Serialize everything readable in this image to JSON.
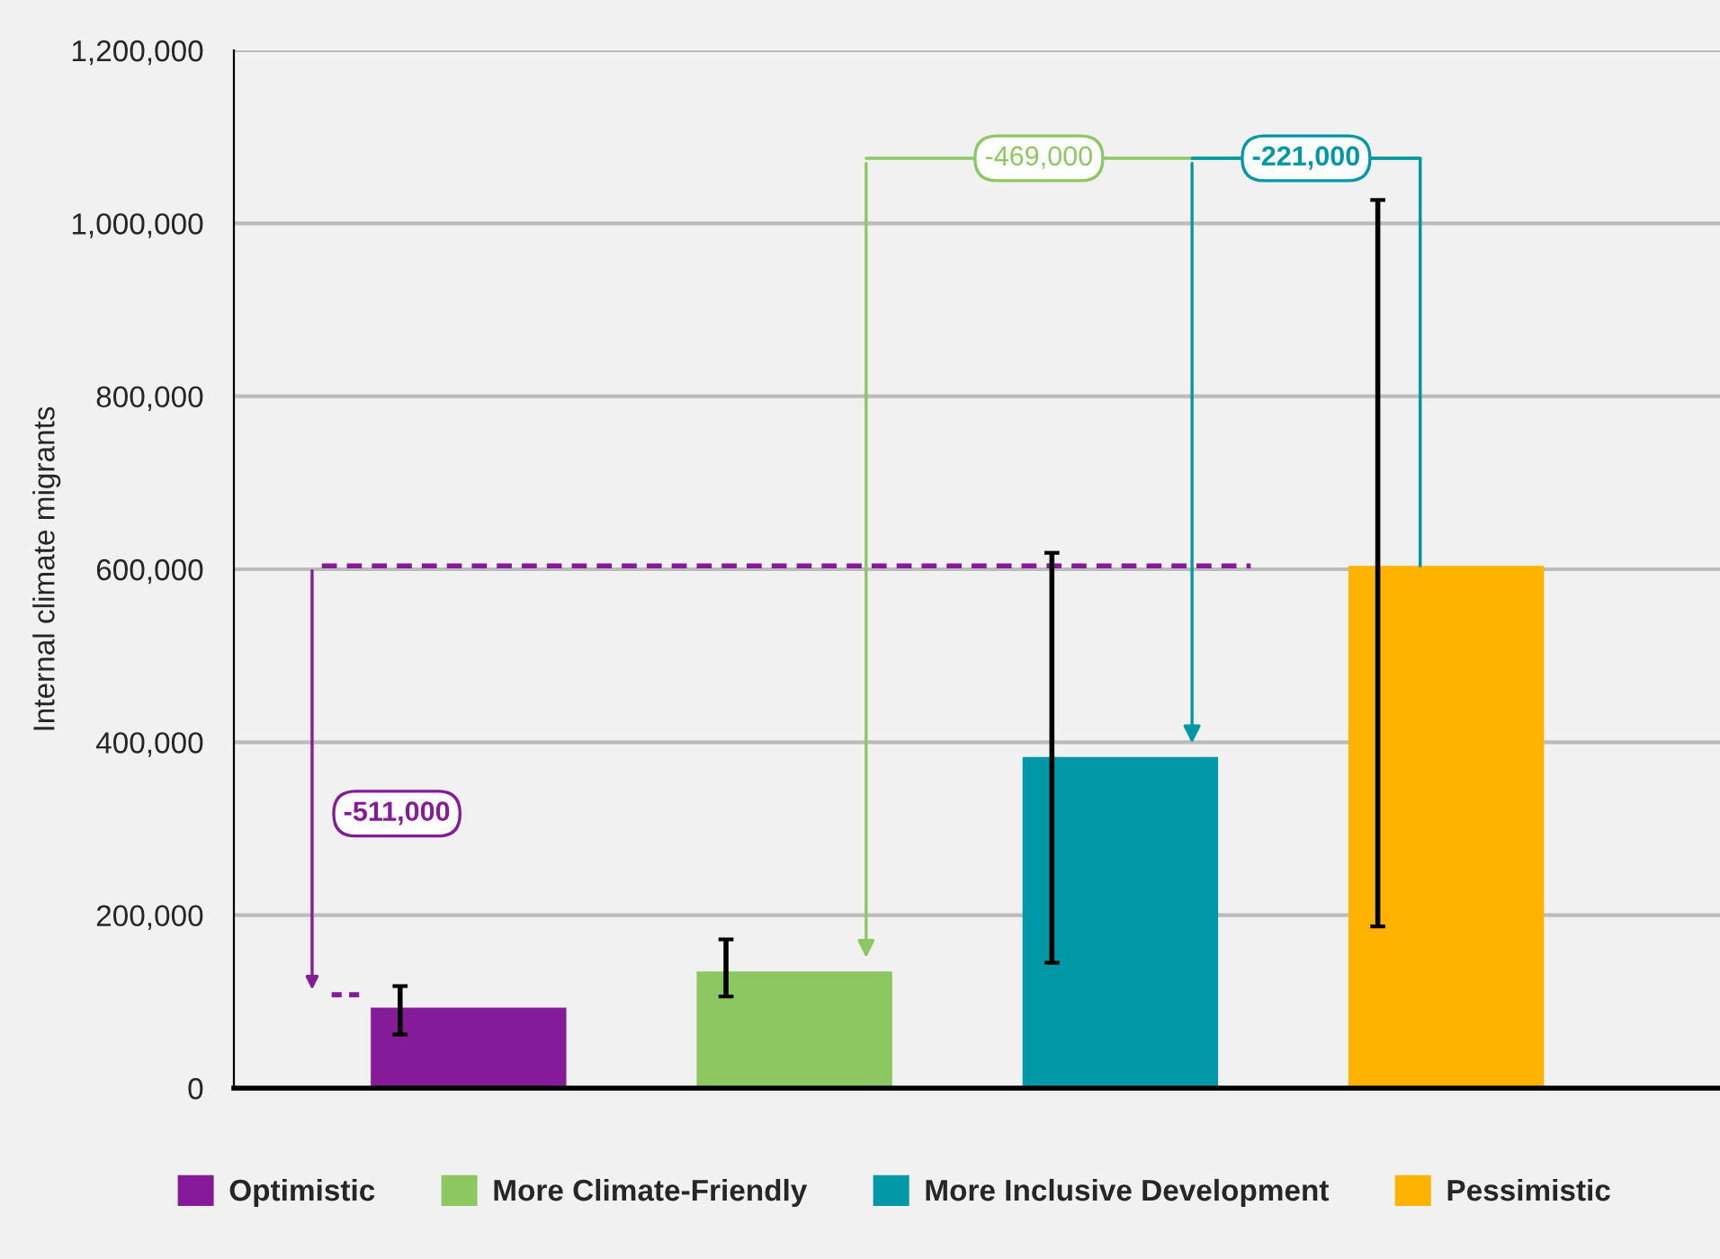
{
  "chart_data": {
    "type": "bar",
    "ylabel": "Internal climate migrants",
    "categories": [
      null,
      null,
      null,
      null
    ],
    "series": [
      {
        "name": "Optimistic",
        "color": "#851b98",
        "values": [
          93000,
          null,
          null,
          null
        ],
        "errors": [
          [
            62000,
            118000
          ],
          null,
          null,
          null
        ]
      },
      {
        "name": "More Climate-Friendly",
        "color": "#8dc762",
        "values": [
          null,
          135000,
          null,
          null
        ],
        "errors": [
          null,
          [
            106000,
            172000
          ],
          null,
          null
        ]
      },
      {
        "name": "More Inclusive Development",
        "color": "#0097a7",
        "values": [
          null,
          null,
          383000,
          null
        ],
        "errors": [
          null,
          null,
          [
            145000,
            619000
          ],
          null
        ]
      },
      {
        "name": "Pessimistic",
        "color": "#fdb300",
        "values": [
          null,
          null,
          null,
          604000
        ],
        "errors": [
          null,
          null,
          null,
          [
            187000,
            1027000
          ]
        ]
      }
    ],
    "ylim": [
      0,
      1200000
    ],
    "yticks": [
      {
        "value": 0,
        "label": "0"
      },
      {
        "value": 200000,
        "label": "200,000"
      },
      {
        "value": 400000,
        "label": "400,000"
      },
      {
        "value": 600000,
        "label": "600,000"
      },
      {
        "value": 800000,
        "label": "800,000"
      },
      {
        "value": 1000000,
        "label": "1,000,000"
      },
      {
        "value": 1200000,
        "label": "1,200,000"
      }
    ],
    "annotations": [
      "-511,000",
      "-469,000",
      "-221,000"
    ],
    "ref_lines": [
      {
        "axis": "y",
        "value": 604000,
        "color": "#851b98",
        "line_style": "dashed"
      }
    ],
    "grid": "y",
    "legend": "bottom"
  }
}
